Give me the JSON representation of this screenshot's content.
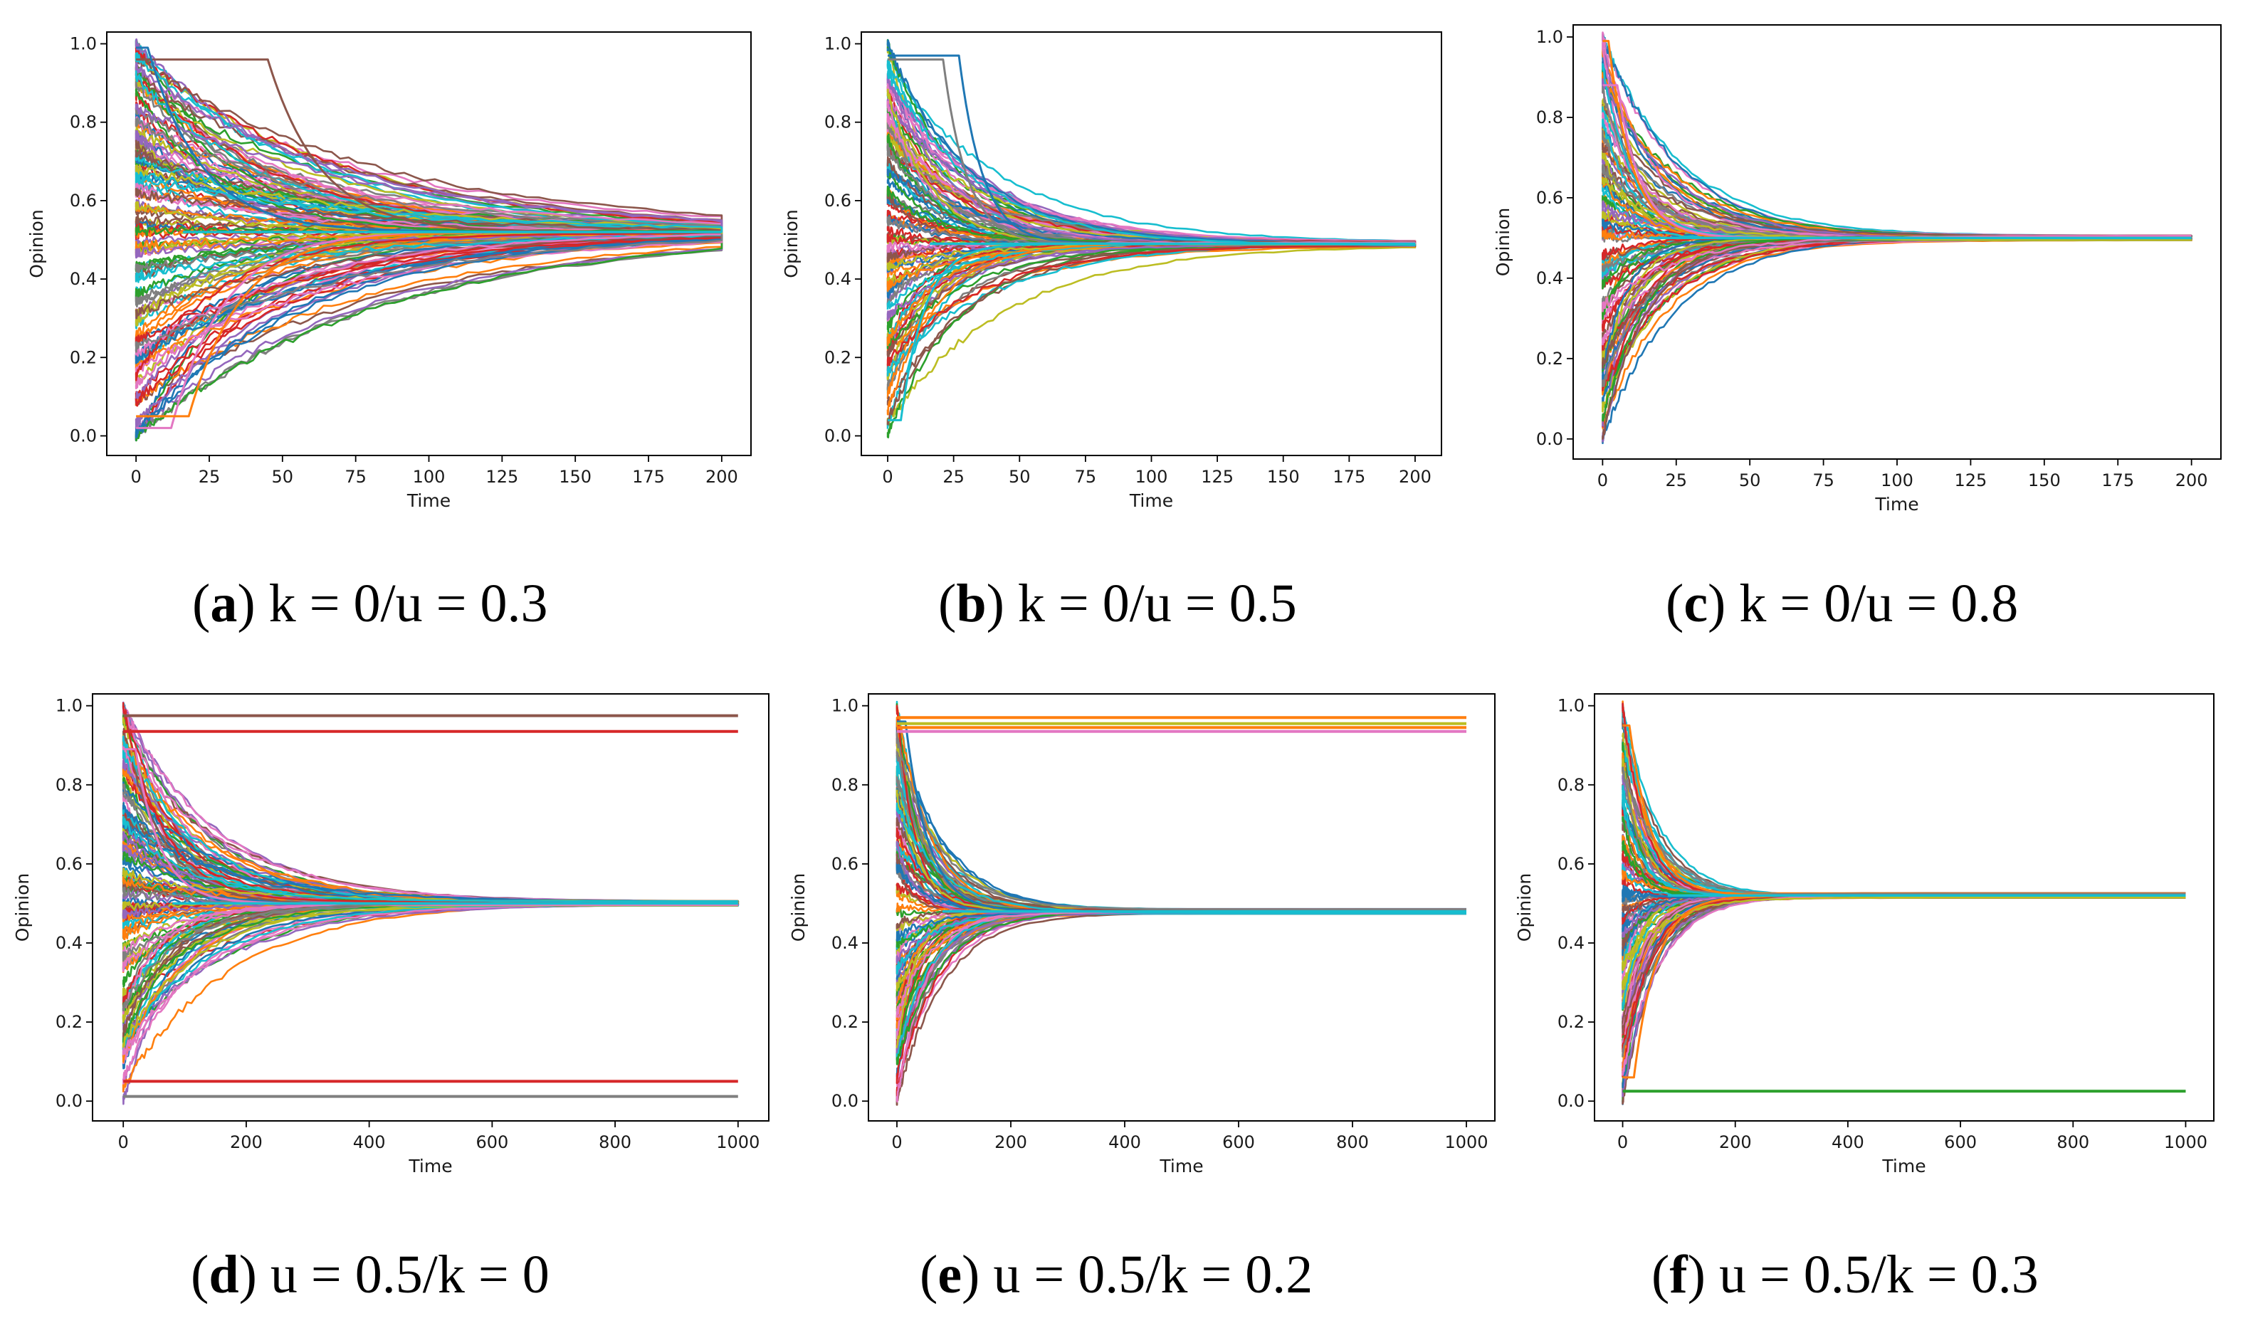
{
  "figure": {
    "description_panels": 6
  },
  "palette": [
    "#1f77b4",
    "#ff7f0e",
    "#2ca02c",
    "#d62728",
    "#9467bd",
    "#8c564b",
    "#e377c2",
    "#7f7f7f",
    "#bcbd22",
    "#17becf"
  ],
  "chart_data": [
    {
      "id": "a",
      "type": "line",
      "caption_letter": "a",
      "caption_text": " k = 0/u = 0.3",
      "xlabel": "Time",
      "ylabel": "Opinion",
      "xlim": [
        -10,
        210
      ],
      "ylim": [
        -0.05,
        1.03
      ],
      "xticks": [
        0,
        25,
        50,
        75,
        100,
        125,
        150,
        175,
        200
      ],
      "xtick_labels": [
        "0",
        "25",
        "50",
        "75",
        "100",
        "125",
        "150",
        "175",
        "200"
      ],
      "yticks": [
        0.0,
        0.2,
        0.4,
        0.6,
        0.8,
        1.0
      ],
      "ytick_labels": [
        "0.0",
        "0.2",
        "0.4",
        "0.6",
        "0.8",
        "1.0"
      ],
      "t_end": 200,
      "consensus": [
        0.52
      ],
      "decay_time": 60,
      "series_count": 140,
      "outliers": [
        {
          "start": 0.96,
          "hold_until": 45,
          "target": 0.52,
          "color_index": 5
        },
        {
          "start": 0.99,
          "hold_until": 4,
          "target": 0.52,
          "color_index": 0
        },
        {
          "start": 0.02,
          "hold_until": 12,
          "target": 0.52,
          "color_index": 6
        },
        {
          "start": 0.05,
          "hold_until": 18,
          "target": 0.52,
          "color_index": 1
        }
      ],
      "stable": []
    },
    {
      "id": "b",
      "type": "line",
      "caption_letter": "b",
      "caption_text": " k = 0/u = 0.5",
      "xlabel": "Time",
      "ylabel": "Opinion",
      "xlim": [
        -10,
        210
      ],
      "ylim": [
        -0.05,
        1.03
      ],
      "xticks": [
        0,
        25,
        50,
        75,
        100,
        125,
        150,
        175,
        200
      ],
      "xtick_labels": [
        "0",
        "25",
        "50",
        "75",
        "100",
        "125",
        "150",
        "175",
        "200"
      ],
      "yticks": [
        0.0,
        0.2,
        0.4,
        0.6,
        0.8,
        1.0
      ],
      "ytick_labels": [
        "0.0",
        "0.2",
        "0.4",
        "0.6",
        "0.8",
        "1.0"
      ],
      "t_end": 200,
      "consensus": [
        0.49
      ],
      "decay_time": 30,
      "series_count": 120,
      "outliers": [
        {
          "start": 0.97,
          "hold_until": 27,
          "target": 0.49,
          "color_index": 0
        },
        {
          "start": 0.96,
          "hold_until": 21,
          "target": 0.49,
          "color_index": 7
        },
        {
          "start": 0.04,
          "hold_until": 5,
          "target": 0.49,
          "color_index": 9
        }
      ],
      "stable": []
    },
    {
      "id": "c",
      "type": "line",
      "caption_letter": "c",
      "caption_text": " k = 0/u = 0.8",
      "xlabel": "Time",
      "ylabel": "Opinion",
      "xlim": [
        -10,
        210
      ],
      "ylim": [
        -0.05,
        1.03
      ],
      "xticks": [
        0,
        25,
        50,
        75,
        100,
        125,
        150,
        175,
        200
      ],
      "xtick_labels": [
        "0",
        "25",
        "50",
        "75",
        "100",
        "125",
        "150",
        "175",
        "200"
      ],
      "yticks": [
        0.0,
        0.2,
        0.4,
        0.6,
        0.8,
        1.0
      ],
      "ytick_labels": [
        "0.0",
        "0.2",
        "0.4",
        "0.6",
        "0.8",
        "1.0"
      ],
      "t_end": 200,
      "consensus": [
        0.5
      ],
      "decay_time": 18,
      "series_count": 120,
      "outliers": [
        {
          "start": 0.99,
          "hold_until": 2,
          "target": 0.5,
          "color_index": 1
        },
        {
          "start": 0.88,
          "hold_until": 5,
          "target": 0.5,
          "color_index": 6
        }
      ],
      "stable": []
    },
    {
      "id": "d",
      "type": "line",
      "caption_letter": "d",
      "caption_text": " u = 0.5/k = 0",
      "xlabel": "Time",
      "ylabel": "Opinion",
      "xlim": [
        -50,
        1050
      ],
      "ylim": [
        -0.05,
        1.03
      ],
      "xticks": [
        0,
        200,
        400,
        600,
        800,
        1000
      ],
      "xtick_labels": [
        "0",
        "200",
        "400",
        "600",
        "800",
        "1000"
      ],
      "yticks": [
        0.0,
        0.2,
        0.4,
        0.6,
        0.8,
        1.0
      ],
      "ytick_labels": [
        "0.0",
        "0.2",
        "0.4",
        "0.6",
        "0.8",
        "1.0"
      ],
      "t_end": 1000,
      "consensus": [
        0.5
      ],
      "decay_time": 120,
      "series_count": 140,
      "outliers": [
        {
          "start": 0.89,
          "hold_until": 20,
          "target": 0.5,
          "color_index": 6
        }
      ],
      "stable": [
        {
          "value": 0.975,
          "color_index": 5
        },
        {
          "value": 0.935,
          "color_index": 3
        },
        {
          "value": 0.05,
          "color_index": 3
        },
        {
          "value": 0.012,
          "color_index": 7
        }
      ]
    },
    {
      "id": "e",
      "type": "line",
      "caption_letter": "e",
      "caption_text": " u = 0.5/k = 0.2",
      "xlabel": "Time",
      "ylabel": "Opinion",
      "xlim": [
        -50,
        1050
      ],
      "ylim": [
        -0.05,
        1.03
      ],
      "xticks": [
        0,
        200,
        400,
        600,
        800,
        1000
      ],
      "xtick_labels": [
        "0",
        "200",
        "400",
        "600",
        "800",
        "1000"
      ],
      "yticks": [
        0.0,
        0.2,
        0.4,
        0.6,
        0.8,
        1.0
      ],
      "ytick_labels": [
        "0.0",
        "0.2",
        "0.4",
        "0.6",
        "0.8",
        "1.0"
      ],
      "t_end": 1000,
      "consensus": [
        0.48
      ],
      "decay_time": 60,
      "series_count": 120,
      "outliers": [
        {
          "start": 0.96,
          "hold_until": 15,
          "target": 0.48,
          "color_index": 0
        }
      ],
      "stable": [
        {
          "value": 0.97,
          "color_index": 1
        },
        {
          "value": 0.955,
          "color_index": 8
        },
        {
          "value": 0.945,
          "color_index": 1
        },
        {
          "value": 0.935,
          "color_index": 6
        }
      ]
    },
    {
      "id": "f",
      "type": "line",
      "caption_letter": "f",
      "caption_text": " u = 0.5/k = 0.3",
      "xlabel": "Time",
      "ylabel": "Opinion",
      "xlim": [
        -50,
        1050
      ],
      "ylim": [
        -0.05,
        1.03
      ],
      "xticks": [
        0,
        200,
        400,
        600,
        800,
        1000
      ],
      "xtick_labels": [
        "0",
        "200",
        "400",
        "600",
        "800",
        "1000"
      ],
      "yticks": [
        0.0,
        0.2,
        0.4,
        0.6,
        0.8,
        1.0
      ],
      "ytick_labels": [
        "0.0",
        "0.2",
        "0.4",
        "0.6",
        "0.8",
        "1.0"
      ],
      "t_end": 1000,
      "consensus": [
        0.52
      ],
      "decay_time": 50,
      "series_count": 120,
      "outliers": [
        {
          "start": 0.06,
          "hold_until": 20,
          "target": 0.52,
          "color_index": 1
        },
        {
          "start": 0.95,
          "hold_until": 12,
          "target": 0.52,
          "color_index": 1
        }
      ],
      "stable": [
        {
          "value": 0.025,
          "color_index": 2
        }
      ]
    }
  ]
}
